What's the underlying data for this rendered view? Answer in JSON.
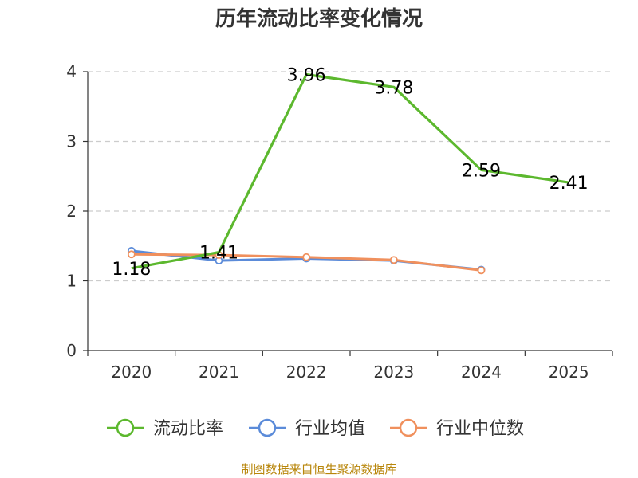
{
  "chart_data": {
    "type": "line",
    "title": "历年流动比率变化情况",
    "categories": [
      "2020",
      "2021",
      "2022",
      "2023",
      "2024",
      "2025"
    ],
    "ylim": [
      0,
      4
    ],
    "yticks": [
      "0",
      "1",
      "2",
      "3",
      "4"
    ],
    "grid": true,
    "legend_position": "bottom",
    "series": [
      {
        "name": "流动比率",
        "color": "#5cb82e",
        "values": [
          1.18,
          1.41,
          3.96,
          3.78,
          2.59,
          2.41
        ],
        "labels": [
          "1.18",
          "1.41",
          "3.96",
          "3.78",
          "2.59",
          "2.41"
        ]
      },
      {
        "name": "行业均值",
        "color": "#5b8bd9",
        "values": [
          1.43,
          1.29,
          1.32,
          1.29,
          1.16,
          null
        ]
      },
      {
        "name": "行业中位数",
        "color": "#f0905d",
        "values": [
          1.38,
          1.37,
          1.34,
          1.3,
          1.15,
          null
        ]
      }
    ],
    "source": "制图数据来自恒生聚源数据库"
  }
}
